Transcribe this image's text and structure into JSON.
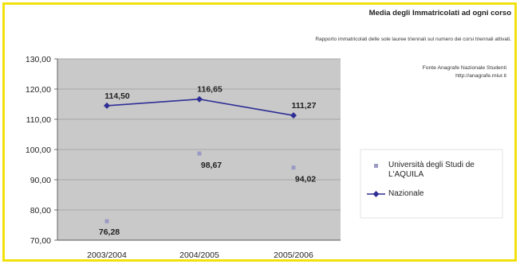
{
  "chart_data": {
    "type": "line",
    "title": "Media degli Immatricolati ad ogni corso",
    "subtitle": "Rapporto immatricolati delle sole lauree triennali sul numero dei corsi triennali attivati.",
    "source_lines": [
      "Fonte Anagrafe Nazionale Studenti",
      "http://anagrafe.miur.it"
    ],
    "categories": [
      "2003/2004",
      "2004/2005",
      "2005/2006"
    ],
    "ylim": [
      70,
      130
    ],
    "yticks": [
      "70,00",
      "80,00",
      "90,00",
      "100,00",
      "110,00",
      "120,00",
      "130,00"
    ],
    "grid": true,
    "legend_position": "right",
    "series": [
      {
        "name": "Università degli Studi de L'AQUILA",
        "values": [
          76.28,
          98.67,
          94.02
        ],
        "labels": [
          "76,28",
          "98,67",
          "94,02"
        ],
        "color": "#9a9ac4",
        "line": false
      },
      {
        "name": "Nazionale",
        "values": [
          114.5,
          116.65,
          111.27
        ],
        "labels": [
          "114,50",
          "116,65",
          "111,27"
        ],
        "color": "#2e2e96",
        "line": true
      }
    ]
  }
}
